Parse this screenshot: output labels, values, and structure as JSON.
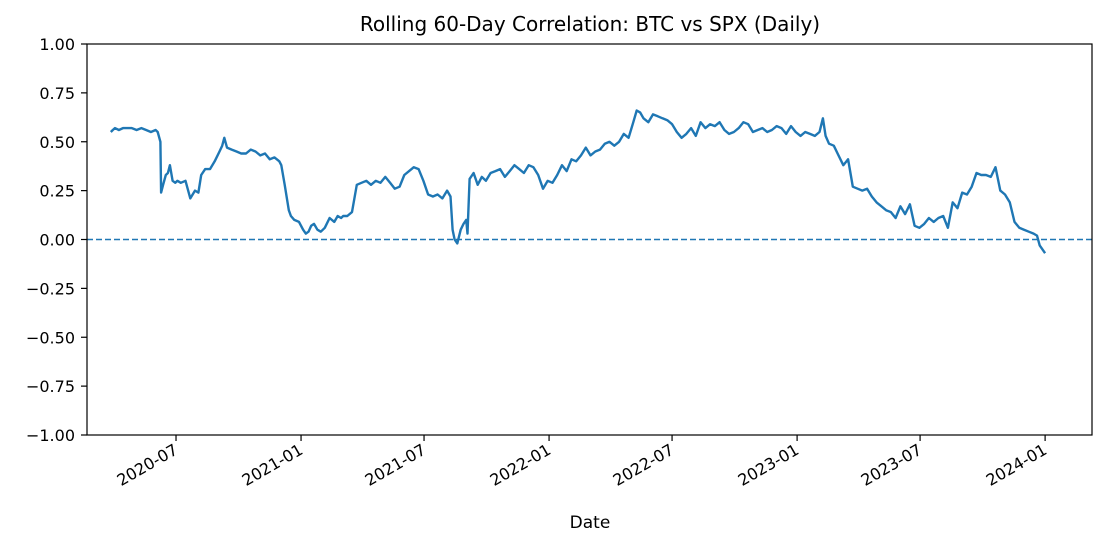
{
  "chart_data": {
    "type": "line",
    "title": "Rolling 60-Day Correlation: BTC vs SPX (Daily)",
    "xlabel": "Date",
    "ylabel": "",
    "ylim": [
      -1.0,
      1.0
    ],
    "xlim": [
      "2020-02-21",
      "2024-03-10"
    ],
    "yticks": [
      "−1.00",
      "−0.75",
      "−0.50",
      "−0.25",
      "0.00",
      "0.25",
      "0.50",
      "0.75",
      "1.00"
    ],
    "ytick_values": [
      -1.0,
      -0.75,
      -0.5,
      -0.25,
      0.0,
      0.25,
      0.5,
      0.75,
      1.0
    ],
    "xticks": [
      "2020-07",
      "2021-01",
      "2021-07",
      "2022-01",
      "2022-07",
      "2023-01",
      "2023-07",
      "2024-01"
    ],
    "xtick_dates": [
      "2020-07-01",
      "2021-01-01",
      "2021-07-01",
      "2022-01-01",
      "2022-07-01",
      "2023-01-01",
      "2023-07-01",
      "2024-01-01"
    ],
    "grid": false,
    "reference_line": {
      "y": 0.0,
      "style": "dashed"
    },
    "line_color": "#1f77b4",
    "series": [
      {
        "x": [
          "2020-03-27",
          "2020-03-30",
          "2020-04-02",
          "2020-04-08",
          "2020-04-14",
          "2020-04-20",
          "2020-04-27",
          "2020-05-04",
          "2020-05-11",
          "2020-05-18",
          "2020-05-25",
          "2020-06-01",
          "2020-06-04",
          "2020-06-08",
          "2020-06-09",
          "2020-06-12",
          "2020-06-16",
          "2020-06-19",
          "2020-06-22",
          "2020-06-26",
          "2020-06-30",
          "2020-07-03",
          "2020-07-08",
          "2020-07-15",
          "2020-07-22",
          "2020-07-29",
          "2020-08-03",
          "2020-08-07",
          "2020-08-13",
          "2020-08-20",
          "2020-08-27",
          "2020-09-03",
          "2020-09-07",
          "2020-09-10",
          "2020-09-14",
          "2020-09-21",
          "2020-09-28",
          "2020-10-05",
          "2020-10-12",
          "2020-10-19",
          "2020-10-26",
          "2020-11-02",
          "2020-11-09",
          "2020-11-16",
          "2020-11-23",
          "2020-11-30",
          "2020-12-03",
          "2020-12-08",
          "2020-12-14",
          "2020-12-17",
          "2020-12-22",
          "2020-12-29",
          "2021-01-04",
          "2021-01-08",
          "2021-01-12",
          "2021-01-16",
          "2021-01-20",
          "2021-01-25",
          "2021-01-30",
          "2021-02-05",
          "2021-02-12",
          "2021-02-19",
          "2021-02-24",
          "2021-03-01",
          "2021-03-04",
          "2021-03-10",
          "2021-03-17",
          "2021-03-24",
          "2021-03-31",
          "2021-04-07",
          "2021-04-14",
          "2021-04-21",
          "2021-04-28",
          "2021-05-05",
          "2021-05-12",
          "2021-05-19",
          "2021-05-26",
          "2021-06-02",
          "2021-06-09",
          "2021-06-16",
          "2021-06-23",
          "2021-06-30",
          "2021-07-07",
          "2021-07-14",
          "2021-07-21",
          "2021-07-28",
          "2021-08-04",
          "2021-08-09",
          "2021-08-12",
          "2021-08-15",
          "2021-08-19",
          "2021-08-24",
          "2021-08-28",
          "2021-09-01",
          "2021-09-03",
          "2021-09-06",
          "2021-09-12",
          "2021-09-18",
          "2021-09-24",
          "2021-09-30",
          "2021-10-07",
          "2021-10-14",
          "2021-10-21",
          "2021-10-28",
          "2021-11-04",
          "2021-11-11",
          "2021-11-18",
          "2021-11-25",
          "2021-12-02",
          "2021-12-09",
          "2021-12-16",
          "2021-12-23",
          "2021-12-30",
          "2022-01-06",
          "2022-01-13",
          "2022-01-20",
          "2022-01-27",
          "2022-02-03",
          "2022-02-10",
          "2022-02-17",
          "2022-02-24",
          "2022-03-03",
          "2022-03-10",
          "2022-03-17",
          "2022-03-24",
          "2022-03-31",
          "2022-04-07",
          "2022-04-14",
          "2022-04-21",
          "2022-04-28",
          "2022-05-05",
          "2022-05-10",
          "2022-05-15",
          "2022-05-20",
          "2022-05-27",
          "2022-06-03",
          "2022-06-10",
          "2022-06-17",
          "2022-06-24",
          "2022-07-01",
          "2022-07-08",
          "2022-07-15",
          "2022-07-22",
          "2022-07-29",
          "2022-08-05",
          "2022-08-12",
          "2022-08-19",
          "2022-08-26",
          "2022-09-02",
          "2022-09-09",
          "2022-09-16",
          "2022-09-23",
          "2022-09-30",
          "2022-10-07",
          "2022-10-14",
          "2022-10-21",
          "2022-10-28",
          "2022-11-04",
          "2022-11-11",
          "2022-11-18",
          "2022-11-25",
          "2022-12-02",
          "2022-12-09",
          "2022-12-16",
          "2022-12-23",
          "2022-12-30",
          "2023-01-06",
          "2023-01-13",
          "2023-01-20",
          "2023-01-27",
          "2023-02-03",
          "2023-02-08",
          "2023-02-12",
          "2023-02-17",
          "2023-02-24",
          "2023-03-03",
          "2023-03-10",
          "2023-03-17",
          "2023-03-21",
          "2023-03-24",
          "2023-03-31",
          "2023-04-07",
          "2023-04-14",
          "2023-04-21",
          "2023-04-28",
          "2023-05-05",
          "2023-05-12",
          "2023-05-19",
          "2023-05-26",
          "2023-06-02",
          "2023-06-09",
          "2023-06-16",
          "2023-06-23",
          "2023-06-30",
          "2023-07-07",
          "2023-07-14",
          "2023-07-21",
          "2023-07-28",
          "2023-08-04",
          "2023-08-11",
          "2023-08-18",
          "2023-08-25",
          "2023-09-01",
          "2023-09-08",
          "2023-09-15",
          "2023-09-22",
          "2023-09-29",
          "2023-10-06",
          "2023-10-13",
          "2023-10-20",
          "2023-10-27",
          "2023-11-03",
          "2023-11-10",
          "2023-11-17",
          "2023-11-24",
          "2023-12-01",
          "2023-12-08",
          "2023-12-15",
          "2023-12-20",
          "2023-12-24",
          "2023-12-28",
          "2024-01-01"
        ],
        "values": [
          0.55,
          0.56,
          0.57,
          0.56,
          0.57,
          0.57,
          0.57,
          0.56,
          0.57,
          0.56,
          0.55,
          0.56,
          0.55,
          0.5,
          0.24,
          0.28,
          0.33,
          0.34,
          0.38,
          0.3,
          0.29,
          0.3,
          0.29,
          0.3,
          0.21,
          0.25,
          0.24,
          0.33,
          0.36,
          0.36,
          0.4,
          0.45,
          0.48,
          0.52,
          0.47,
          0.46,
          0.45,
          0.44,
          0.44,
          0.46,
          0.45,
          0.43,
          0.44,
          0.41,
          0.42,
          0.4,
          0.38,
          0.28,
          0.15,
          0.12,
          0.1,
          0.09,
          0.05,
          0.03,
          0.04,
          0.07,
          0.08,
          0.05,
          0.04,
          0.06,
          0.11,
          0.09,
          0.12,
          0.11,
          0.12,
          0.12,
          0.14,
          0.28,
          0.29,
          0.3,
          0.28,
          0.3,
          0.29,
          0.32,
          0.29,
          0.26,
          0.27,
          0.33,
          0.35,
          0.37,
          0.36,
          0.3,
          0.23,
          0.22,
          0.23,
          0.21,
          0.25,
          0.22,
          0.05,
          0.0,
          -0.02,
          0.05,
          0.08,
          0.1,
          0.03,
          0.31,
          0.34,
          0.28,
          0.32,
          0.3,
          0.34,
          0.35,
          0.36,
          0.32,
          0.35,
          0.38,
          0.36,
          0.34,
          0.38,
          0.37,
          0.33,
          0.26,
          0.3,
          0.29,
          0.33,
          0.38,
          0.35,
          0.41,
          0.4,
          0.43,
          0.47,
          0.43,
          0.45,
          0.46,
          0.49,
          0.5,
          0.48,
          0.5,
          0.54,
          0.52,
          0.6,
          0.66,
          0.65,
          0.62,
          0.6,
          0.64,
          0.63,
          0.62,
          0.61,
          0.59,
          0.55,
          0.52,
          0.54,
          0.57,
          0.53,
          0.6,
          0.57,
          0.59,
          0.58,
          0.6,
          0.56,
          0.54,
          0.55,
          0.57,
          0.6,
          0.59,
          0.55,
          0.56,
          0.57,
          0.55,
          0.56,
          0.58,
          0.57,
          0.54,
          0.58,
          0.55,
          0.53,
          0.55,
          0.54,
          0.53,
          0.55,
          0.62,
          0.53,
          0.49,
          0.48,
          0.43,
          0.38,
          0.41,
          0.33,
          0.27,
          0.26,
          0.25,
          0.26,
          0.22,
          0.19,
          0.17,
          0.15,
          0.14,
          0.11,
          0.17,
          0.13,
          0.18,
          0.07,
          0.06,
          0.08,
          0.11,
          0.09,
          0.11,
          0.12,
          0.06,
          0.19,
          0.16,
          0.24,
          0.23,
          0.27,
          0.34,
          0.33,
          0.33,
          0.32,
          0.37,
          0.25,
          0.23,
          0.19,
          0.09,
          0.06,
          0.05,
          0.04,
          0.03,
          0.02,
          -0.03,
          -0.05,
          -0.07
        ]
      }
    ]
  }
}
